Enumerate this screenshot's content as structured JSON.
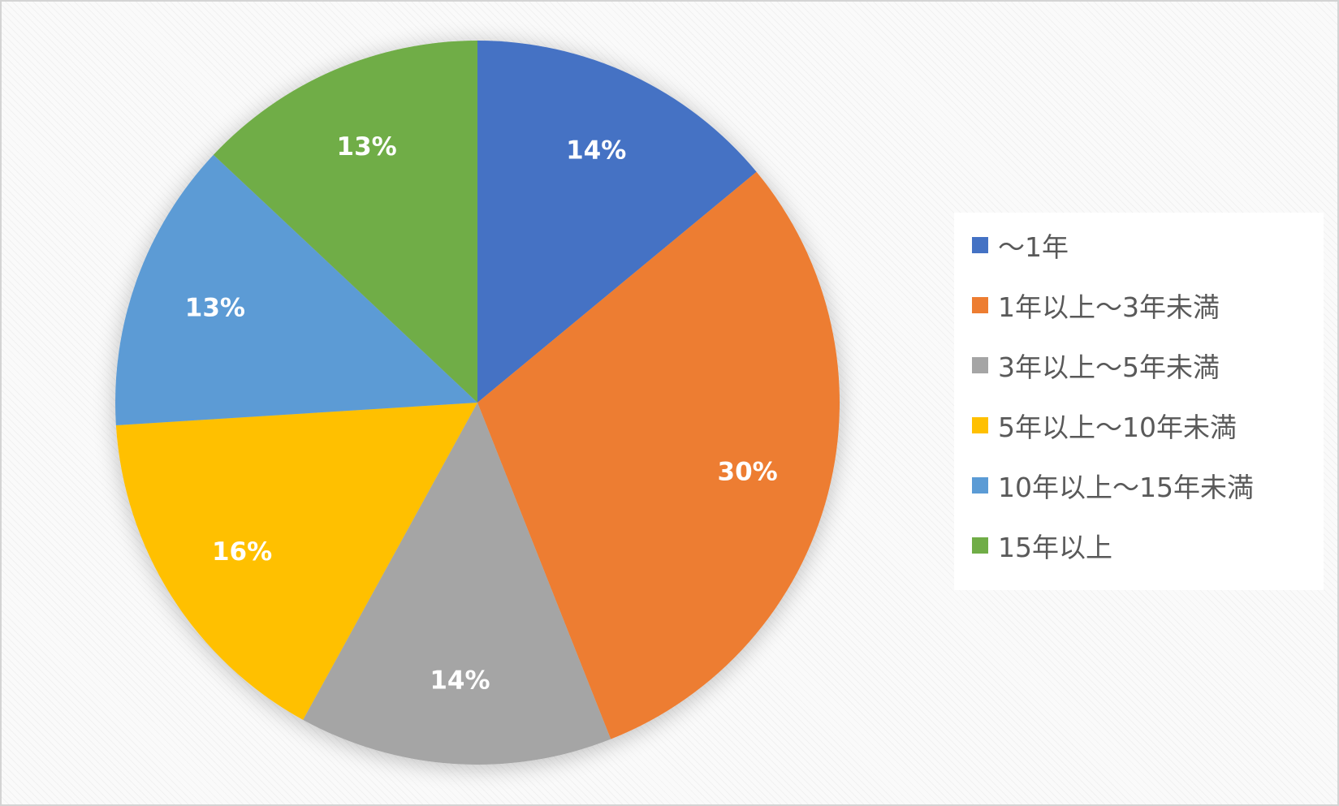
{
  "chart_data": {
    "type": "pie",
    "start_angle_deg": 0,
    "direction": "clockwise",
    "legend_position": "right",
    "slices": [
      {
        "label": "～1年",
        "value": 14,
        "value_label": "14%",
        "color": "#4472C4"
      },
      {
        "label": "1年以上～3年未満",
        "value": 30,
        "value_label": "30%",
        "color": "#ED7D31"
      },
      {
        "label": "3年以上～5年未満",
        "value": 14,
        "value_label": "14%",
        "color": "#A5A5A5"
      },
      {
        "label": "5年以上～10年未満",
        "value": 16,
        "value_label": "16%",
        "color": "#FFC000"
      },
      {
        "label": "10年以上～15年未満",
        "value": 13,
        "value_label": "13%",
        "color": "#5B9BD5"
      },
      {
        "label": "15年以上",
        "value": 13,
        "value_label": "13%",
        "color": "#70AD47"
      }
    ]
  }
}
